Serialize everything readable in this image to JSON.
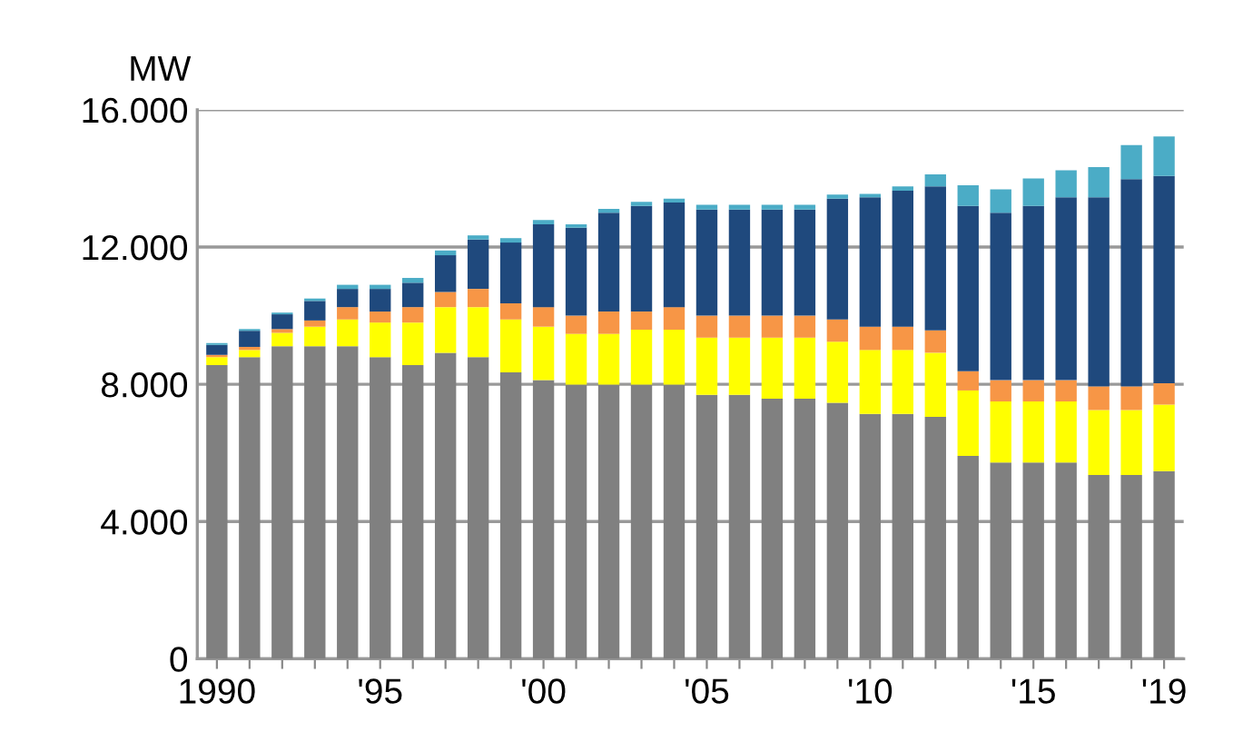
{
  "chart_data": {
    "type": "bar",
    "stacked": true,
    "ylabel": "MW",
    "categories": [
      "1990",
      null,
      null,
      null,
      null,
      "'95",
      null,
      null,
      null,
      null,
      "'00",
      null,
      null,
      null,
      null,
      "'05",
      null,
      null,
      null,
      null,
      "'10",
      null,
      null,
      null,
      null,
      "'15",
      null,
      null,
      null,
      "'19"
    ],
    "series": [
      {
        "color": "#808080",
        "values": [
          8560,
          8790,
          9110,
          9110,
          9110,
          8790,
          8560,
          8920,
          8790,
          8350,
          8120,
          7990,
          7990,
          7990,
          7990,
          7690,
          7690,
          7580,
          7580,
          7460,
          7140,
          7140,
          7050,
          5910,
          5720,
          5720,
          5720,
          5360,
          5360,
          5470
        ]
      },
      {
        "color": "#ffff00",
        "values": [
          230,
          210,
          390,
          570,
          780,
          1010,
          1240,
          1330,
          1460,
          1540,
          1560,
          1480,
          1480,
          1600,
          1600,
          1670,
          1670,
          1780,
          1780,
          1780,
          1860,
          1860,
          1870,
          1910,
          1780,
          1780,
          1780,
          1890,
          1890,
          1940
        ]
      },
      {
        "color": "#f79646",
        "values": [
          70,
          90,
          110,
          180,
          360,
          320,
          450,
          440,
          530,
          470,
          570,
          530,
          650,
          530,
          660,
          640,
          640,
          640,
          640,
          650,
          680,
          680,
          650,
          560,
          620,
          620,
          620,
          690,
          690,
          620
        ]
      },
      {
        "color": "#1f497d",
        "values": [
          290,
          470,
          430,
          570,
          530,
          660,
          710,
          1070,
          1440,
          1770,
          2410,
          2560,
          2880,
          3080,
          3050,
          3090,
          3090,
          3090,
          3090,
          3520,
          3770,
          3960,
          4200,
          4820,
          4880,
          5080,
          5330,
          5510,
          6040,
          6040
        ]
      },
      {
        "color": "#4bacc6",
        "values": [
          50,
          50,
          50,
          70,
          120,
          120,
          140,
          140,
          120,
          130,
          130,
          100,
          110,
          120,
          110,
          140,
          140,
          140,
          140,
          120,
          100,
          130,
          350,
          600,
          680,
          800,
          790,
          880,
          990,
          1150
        ]
      }
    ],
    "ylim": [
      0,
      16000
    ],
    "yticks": [
      {
        "value": 0,
        "label": "0"
      },
      {
        "value": 4000,
        "label": "4.000"
      },
      {
        "value": 8000,
        "label": "8.000"
      },
      {
        "value": 12000,
        "label": "12.000"
      },
      {
        "value": 16000,
        "label": "16.000"
      }
    ],
    "grid": "y",
    "legend": false
  }
}
